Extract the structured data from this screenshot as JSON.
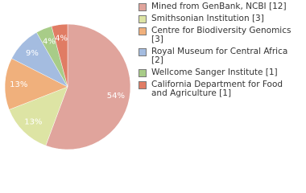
{
  "chart_data": {
    "type": "pie",
    "categories": [
      "Mined from GenBank, NCBI [12]",
      "Smithsonian Institution [3]",
      "Centre for Biodiversity Genomics [3]",
      "Royal Museum for Central Africa [2]",
      "Wellcome Sanger Institute [1]",
      "California Department for Food and Agriculture [1]"
    ],
    "values": [
      54,
      13,
      13,
      9,
      4,
      4
    ],
    "value_labels": [
      "54%",
      "13%",
      "13%",
      "9%",
      "4%",
      "4%"
    ],
    "colors": [
      "#e0a49c",
      "#dde4a4",
      "#f0b07c",
      "#a4bce0",
      "#a8cc88",
      "#e07c64"
    ]
  }
}
